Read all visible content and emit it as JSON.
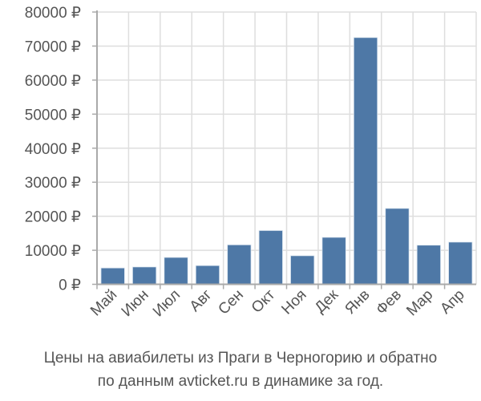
{
  "chart_data": {
    "type": "bar",
    "categories": [
      "Май",
      "Июн",
      "Июл",
      "Авг",
      "Сен",
      "Окт",
      "Ноя",
      "Дек",
      "Янв",
      "Фев",
      "Мар",
      "Апр"
    ],
    "values": [
      4800,
      5100,
      7900,
      5500,
      11600,
      15800,
      8400,
      13800,
      72500,
      22300,
      11500,
      12400
    ],
    "ylim": [
      0,
      80000
    ],
    "yticks": [
      0,
      10000,
      20000,
      30000,
      40000,
      50000,
      60000,
      70000,
      80000
    ],
    "ytick_labels": [
      "0 ₽",
      "10000 ₽",
      "20000 ₽",
      "30000 ₽",
      "40000 ₽",
      "50000 ₽",
      "60000 ₽",
      "70000 ₽",
      "80000 ₽"
    ],
    "grid": true,
    "bar_color": "#4e78a6",
    "title": "",
    "xlabel": "",
    "ylabel": ""
  },
  "caption": {
    "line1": "Цены на авиабилеты из Праги в Черногорию и обратно",
    "line2": "по данным avticket.ru в динамике за год."
  }
}
